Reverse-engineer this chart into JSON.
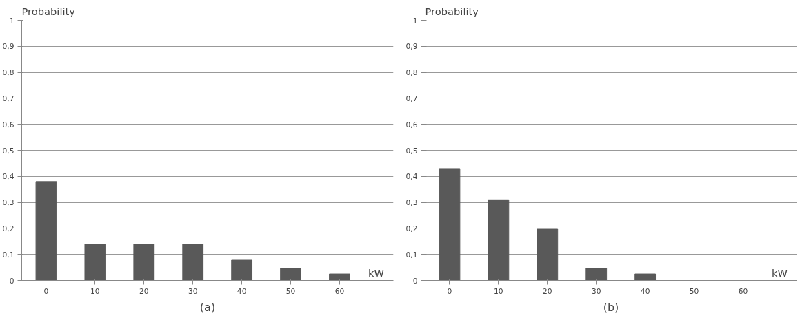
{
  "chart_data": [
    {
      "type": "bar",
      "ylabel": "Probability",
      "xlabel": "kW",
      "annotations": [
        "(a)"
      ],
      "categories": [
        "0",
        "10",
        "20",
        "30",
        "40",
        "50",
        "60"
      ],
      "values": [
        0.38,
        0.14,
        0.14,
        0.14,
        0.078,
        0.047,
        0.025
      ],
      "color": "#595959",
      "ylim": [
        0,
        1
      ],
      "yticks": [
        0,
        {
          "value": 0.1,
          "label": "0,1"
        },
        {
          "value": 0.2,
          "label": "0,2"
        },
        {
          "value": 0.3,
          "label": "0,3"
        },
        {
          "value": 0.4,
          "label": "0,4"
        },
        {
          "value": 0.5,
          "label": "0,5"
        },
        {
          "value": 0.6,
          "label": "0,6"
        },
        {
          "value": 0.7,
          "label": "0,7"
        },
        {
          "value": 0.8,
          "label": "0,8"
        },
        {
          "value": 0.9,
          "label": "0,9"
        },
        1
      ],
      "grid": "y"
    },
    {
      "type": "bar",
      "ylabel": "Probability",
      "xlabel": "kW",
      "annotations": [
        "(b)"
      ],
      "categories": [
        "0",
        "10",
        "20",
        "30",
        "40",
        "50",
        "60"
      ],
      "values": [
        0.43,
        0.31,
        0.197,
        0.047,
        0.025,
        0,
        0
      ],
      "color": "#595959",
      "ylim": [
        0,
        1
      ],
      "yticks": [
        0,
        {
          "value": 0.1,
          "label": "0,1"
        },
        {
          "value": 0.2,
          "label": "0,2"
        },
        {
          "value": 0.3,
          "label": "0,3"
        },
        {
          "value": 0.4,
          "label": "0,4"
        },
        {
          "value": 0.5,
          "label": "0,5"
        },
        {
          "value": 0.6,
          "label": "0,6"
        },
        {
          "value": 0.7,
          "label": "0,7"
        },
        {
          "value": 0.8,
          "label": "0,8"
        },
        {
          "value": 0.9,
          "label": "0,9"
        },
        1
      ],
      "grid": "y"
    }
  ]
}
